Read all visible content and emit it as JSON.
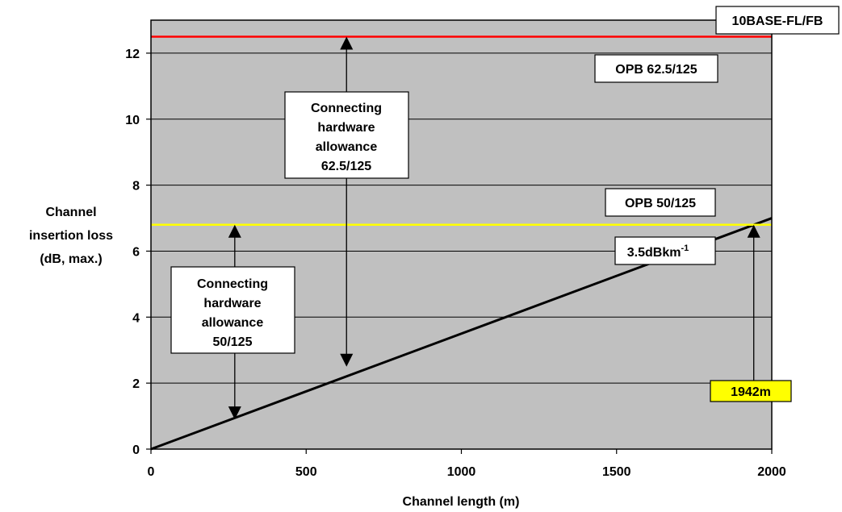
{
  "chart_data": {
    "type": "line",
    "xlabel": "Channel length (m)",
    "ylabel_lines": [
      "Channel",
      "insertion loss",
      "(dB, max.)"
    ],
    "xlim": [
      0,
      2000
    ],
    "ylim": [
      0,
      13
    ],
    "x_ticks": [
      0,
      500,
      1000,
      1500,
      2000
    ],
    "y_ticks": [
      0,
      2,
      4,
      6,
      8,
      10,
      12
    ],
    "grid": "horizontal",
    "background": "#c0c0c0",
    "series": [
      {
        "name": "3.5dBkm",
        "name_superscript": "-1",
        "color": "#000000",
        "x": [
          0,
          2000
        ],
        "y": [
          0,
          7.0
        ]
      },
      {
        "name": "OPB 62.5/125",
        "color": "#ff0000",
        "x": [
          0,
          2000
        ],
        "y": [
          12.5,
          12.5
        ]
      },
      {
        "name": "OPB 50/125",
        "color": "#ffff00",
        "x": [
          0,
          2000
        ],
        "y": [
          6.8,
          6.8
        ]
      }
    ],
    "annotations": {
      "standard_label": "10BASE-FL/FB",
      "opb_625_label": "OPB 62.5/125",
      "opb_50_label": "OPB 50/125",
      "slope_label": "3.5dBkm",
      "slope_sup": "-1",
      "allowance_625": [
        "Connecting",
        "hardware",
        "allowance",
        "62.5/125"
      ],
      "allowance_50": [
        "Connecting",
        "hardware",
        "allowance",
        "50/125"
      ],
      "crossover_label": "1942m",
      "crossover_color": "#ffff00",
      "crossover_x": 1942,
      "arrow_625": {
        "x": 630,
        "y_from": 2.5,
        "y_to": 12.5
      },
      "arrow_50": {
        "x": 270,
        "y_from": 0.9,
        "y_to": 6.8
      },
      "arrow_crossover": {
        "x": 1942,
        "y_from": 2.0,
        "y_to": 6.8
      }
    }
  }
}
